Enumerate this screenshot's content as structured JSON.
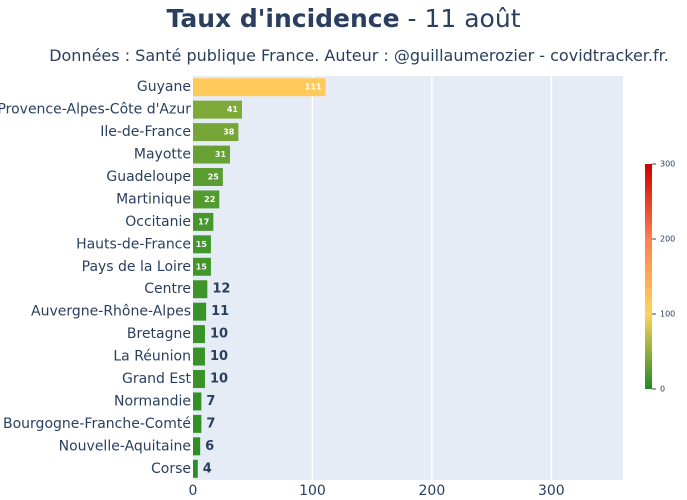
{
  "title": {
    "main": "Taux d'incidence",
    "rest": " - 11 août"
  },
  "subtitle": "Données : Santé publique France. Auteur : @guillaumerozier - covidtracker.fr.",
  "chart_data": {
    "type": "bar",
    "orientation": "horizontal",
    "categories": [
      "Guyane",
      "Provence-Alpes-Côte d'Azur",
      "Ile-de-France",
      "Mayotte",
      "Guadeloupe",
      "Martinique",
      "Occitanie",
      "Hauts-de-France",
      "Pays de la Loire",
      "Centre",
      "Auvergne-Rhône-Alpes",
      "Bretagne",
      "La Réunion",
      "Grand Est",
      "Normandie",
      "Bourgogne-Franche-Comté",
      "Nouvelle-Aquitaine",
      "Corse"
    ],
    "values": [
      111,
      41,
      38,
      31,
      25,
      22,
      17,
      15,
      15,
      12,
      11,
      10,
      10,
      10,
      7,
      7,
      6,
      4
    ],
    "xlim": [
      0,
      360
    ],
    "xticks": [
      0,
      100,
      200,
      300
    ],
    "grid": true,
    "colorscale": {
      "min": 0,
      "max": 300,
      "ticks": [
        0,
        100,
        200,
        300
      ],
      "colors": [
        "#228b22",
        "#ffd35a",
        "#ff7f50",
        "#cc0000"
      ]
    }
  }
}
